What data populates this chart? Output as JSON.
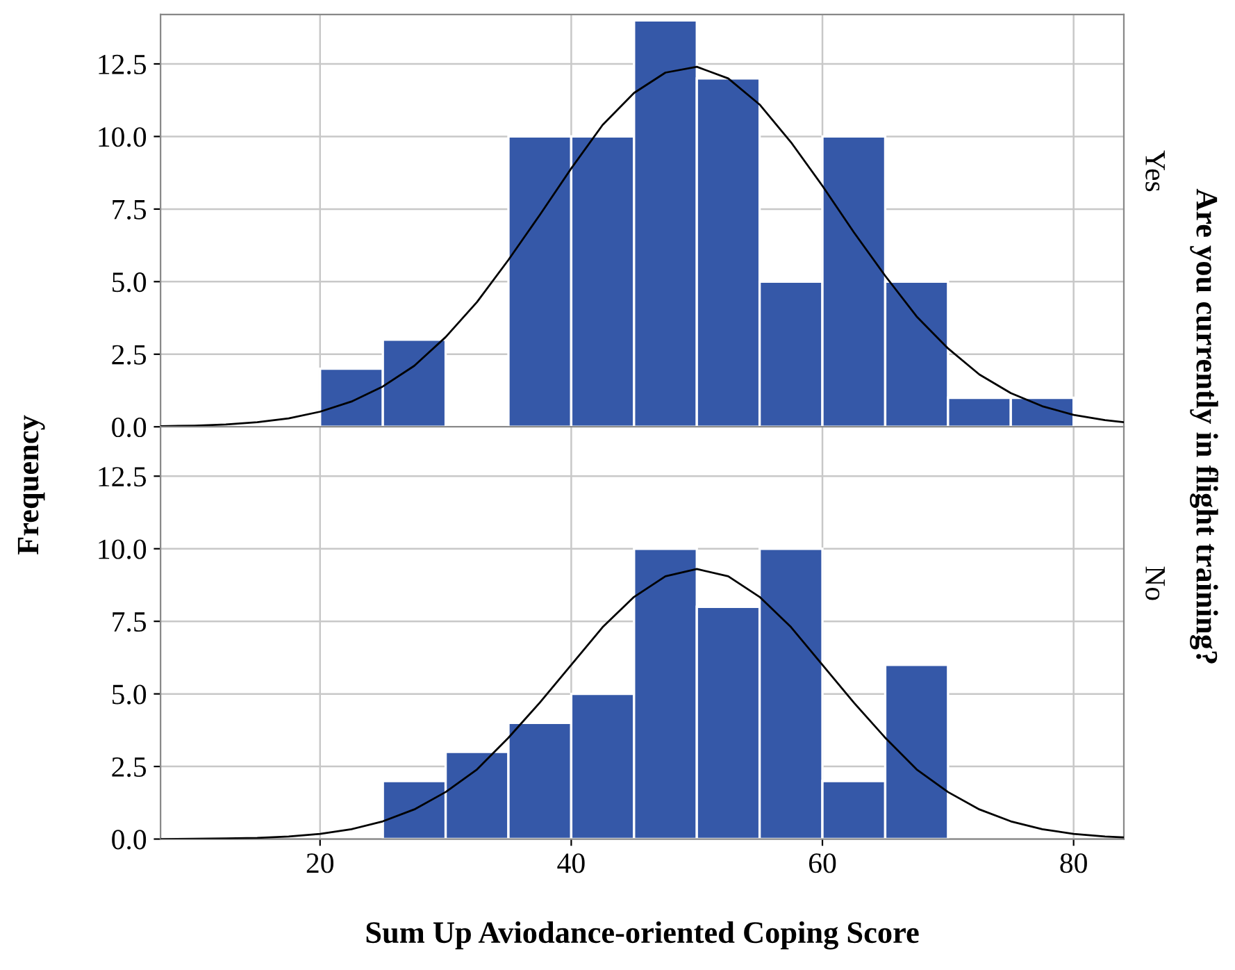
{
  "chart_data": [
    {
      "type": "histogram",
      "ylabel": "Frequency",
      "y2label": "Are you currently in flight training?",
      "annotations": [
        "Yes"
      ],
      "bins": [
        20,
        25,
        30,
        35,
        40,
        45,
        50,
        55,
        60,
        65,
        70,
        75,
        80
      ],
      "values": [
        2,
        3,
        0,
        10,
        10,
        14,
        12,
        5,
        10,
        5,
        1,
        1
      ],
      "color": "#3558a8",
      "series": [
        {
          "type": "line",
          "color": "#000000",
          "x": [
            7.3,
            10,
            12.5,
            15,
            17.5,
            20,
            22.5,
            25,
            27.5,
            30,
            32.5,
            35,
            37.5,
            40,
            42.5,
            45,
            47.5,
            50,
            52.5,
            55,
            57.5,
            60,
            62.5,
            65,
            67.5,
            70,
            72.5,
            75,
            77.5,
            80,
            82.5,
            84
          ],
          "values": [
            0.02,
            0.04,
            0.08,
            0.16,
            0.29,
            0.52,
            0.87,
            1.39,
            2.1,
            3.09,
            4.3,
            5.75,
            7.3,
            8.9,
            10.4,
            11.5,
            12.2,
            12.4,
            12.0,
            11.1,
            9.8,
            8.3,
            6.7,
            5.2,
            3.8,
            2.7,
            1.8,
            1.16,
            0.71,
            0.41,
            0.23,
            0.16
          ]
        }
      ],
      "xlim": [
        7.3,
        84
      ],
      "xticks": [
        20,
        40,
        60,
        80
      ],
      "ylim": [
        0,
        14.2
      ],
      "yticks": [
        {
          "value": 0,
          "label": "0.0"
        },
        {
          "value": 2.5,
          "label": "2.5"
        },
        {
          "value": 5,
          "label": "5.0"
        },
        {
          "value": 7.5,
          "label": "7.5"
        },
        {
          "value": 10,
          "label": "10.0"
        },
        {
          "value": 12.5,
          "label": "12.5"
        }
      ],
      "grid": true,
      "tick_labels": "y"
    },
    {
      "type": "histogram",
      "xlabel": "Sum Up Aviodance-oriented Coping Score",
      "annotations": [
        "No"
      ],
      "bins": [
        25,
        30,
        35,
        40,
        45,
        50,
        55,
        60,
        65,
        70
      ],
      "values": [
        2,
        3,
        4,
        5,
        10,
        8,
        10,
        2,
        6
      ],
      "color": "#3558a8",
      "series": [
        {
          "type": "line",
          "color": "#000000",
          "x": [
            7.3,
            10,
            12.5,
            15,
            17.5,
            20,
            22.5,
            25,
            27.5,
            30,
            32.5,
            35,
            37.5,
            40,
            42.5,
            45,
            47.5,
            50,
            52.5,
            55,
            57.5,
            60,
            62.5,
            65,
            67.5,
            70,
            72.5,
            75,
            77.5,
            80,
            82.5,
            84
          ],
          "values": [
            0.0,
            0.01,
            0.02,
            0.04,
            0.09,
            0.18,
            0.34,
            0.61,
            1.02,
            1.62,
            2.4,
            3.49,
            4.7,
            6.0,
            7.3,
            8.34,
            9.05,
            9.3,
            9.05,
            8.34,
            7.3,
            6.0,
            4.7,
            3.49,
            2.4,
            1.62,
            1.02,
            0.61,
            0.34,
            0.18,
            0.09,
            0.06
          ]
        }
      ],
      "xlim": [
        7.3,
        84
      ],
      "xticks": [
        20,
        40,
        60,
        80
      ],
      "ylim": [
        0,
        14.2
      ],
      "yticks": [
        {
          "value": 0,
          "label": "0.0"
        },
        {
          "value": 2.5,
          "label": "2.5"
        },
        {
          "value": 5,
          "label": "5.0"
        },
        {
          "value": 7.5,
          "label": "7.5"
        },
        {
          "value": 10,
          "label": "10.0"
        },
        {
          "value": 12.5,
          "label": "12.5"
        }
      ],
      "grid": true
    }
  ]
}
